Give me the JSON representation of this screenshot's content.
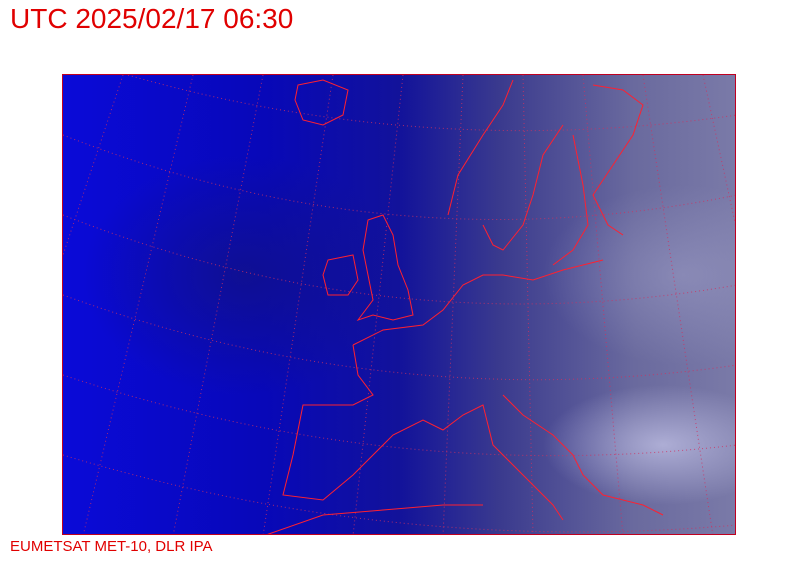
{
  "header": {
    "title": "UTC 2025/02/17 06:30"
  },
  "footer": {
    "credit": "EUMETSAT MET-10, DLR IPA"
  },
  "map": {
    "type": "satellite-image",
    "region": "Europe and North Atlantic",
    "coastline_color": "#ff2030",
    "grid_color": "#d03060"
  },
  "colors": {
    "text": "#e00000"
  }
}
